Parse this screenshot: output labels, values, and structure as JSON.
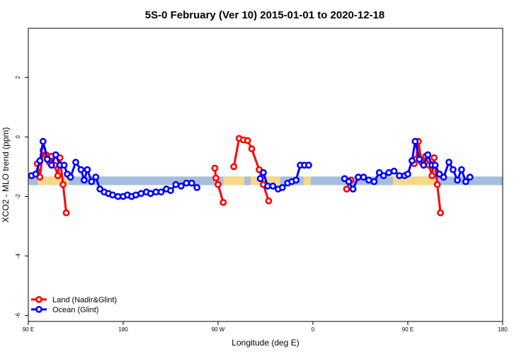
{
  "chart_data": {
    "type": "line",
    "title": "5S-0 February (Ver 10)   2015-01-01 to 2020-12-18",
    "xlabel": "Longitude (deg E)",
    "ylabel": "XCO2 - MLO trend (ppm)",
    "xlim": [
      90,
      540
    ],
    "ylim": [
      -6.2,
      3.65
    ],
    "x_ticks": [
      {
        "value": 90,
        "label": "90 E"
      },
      {
        "value": 180,
        "label": "180"
      },
      {
        "value": 270,
        "label": "90 W"
      },
      {
        "value": 360,
        "label": "0"
      },
      {
        "value": 450,
        "label": "90 E"
      },
      {
        "value": 540,
        "label": "180"
      }
    ],
    "y_ticks": [
      {
        "value": 2,
        "label": "2"
      },
      {
        "value": 0,
        "label": "0"
      },
      {
        "value": -2,
        "label": "-2"
      },
      {
        "value": -4,
        "label": "-4"
      },
      {
        "value": -6,
        "label": "-6"
      }
    ],
    "legend_position": "bottom-left",
    "grid": false,
    "band": {
      "y_from": -1.62,
      "y_to": -1.33,
      "color": "#a6bddb",
      "land_color": "#f5d98b"
    },
    "land_spans": [
      [
        99,
        129
      ],
      [
        275,
        295
      ],
      [
        301,
        329
      ],
      [
        351,
        358
      ],
      [
        436,
        477
      ]
    ],
    "series": [
      {
        "name": "Land (Nadir&Glint)",
        "color": "#ff0000",
        "segments": [
          [
            [
              98.5,
              -0.9
            ],
            [
              101,
              -1.35
            ],
            [
              104,
              -0.45
            ],
            [
              107,
              -0.6
            ],
            [
              110,
              -0.85
            ],
            [
              112,
              -0.65
            ],
            [
              115,
              -0.95
            ],
            [
              118,
              -1.3
            ],
            [
              120,
              -0.7
            ],
            [
              123,
              -1.6
            ],
            [
              126,
              -2.55
            ]
          ],
          [
            [
              267,
              -1.05
            ],
            [
              268,
              -1.38
            ],
            [
              270,
              -1.6
            ],
            [
              275,
              -2.2
            ]
          ],
          [
            [
              285,
              -1.0
            ],
            [
              290,
              -0.05
            ],
            [
              294,
              -0.1
            ],
            [
              298,
              -0.12
            ],
            [
              302,
              -0.4
            ],
            [
              309,
              -1.1
            ],
            [
              313,
              -1.6
            ],
            [
              318,
              -2.15
            ]
          ],
          [
            [
              392,
              -1.75
            ],
            [
              396,
              -1.45
            ]
          ],
          [
            [
              456,
              -0.9
            ],
            [
              458,
              -0.75
            ],
            [
              460,
              -0.15
            ],
            [
              463,
              -0.85
            ],
            [
              467,
              -0.65
            ],
            [
              470,
              -0.95
            ],
            [
              473,
              -1.3
            ],
            [
              475,
              -0.7
            ],
            [
              478,
              -1.6
            ],
            [
              481,
              -2.55
            ]
          ]
        ]
      },
      {
        "name": "Ocean (Glint)",
        "color": "#0000ff",
        "segments": [
          [
            [
              93,
              -1.3
            ],
            [
              97,
              -1.25
            ],
            [
              101,
              -0.8
            ],
            [
              104,
              -0.15
            ],
            [
              108,
              -0.75
            ],
            [
              112,
              -0.95
            ],
            [
              116,
              -0.6
            ],
            [
              120,
              -0.95
            ],
            [
              124,
              -0.95
            ],
            [
              127,
              -1.25
            ],
            [
              130,
              -1.35
            ],
            [
              135,
              -0.85
            ],
            [
              140,
              -1.1
            ],
            [
              143,
              -1.45
            ],
            [
              146,
              -1.1
            ],
            [
              150,
              -1.5
            ],
            [
              154,
              -1.35
            ],
            [
              158,
              -1.75
            ],
            [
              162,
              -1.85
            ],
            [
              166,
              -1.9
            ],
            [
              170,
              -1.95
            ],
            [
              175,
              -2.0
            ],
            [
              180,
              -2.0
            ],
            [
              184,
              -1.95
            ],
            [
              188,
              -2.0
            ],
            [
              192,
              -1.95
            ],
            [
              197,
              -1.9
            ],
            [
              202,
              -1.85
            ],
            [
              206,
              -1.9
            ],
            [
              211,
              -1.85
            ],
            [
              216,
              -1.85
            ],
            [
              221,
              -1.75
            ],
            [
              225,
              -1.8
            ],
            [
              230,
              -1.6
            ],
            [
              235,
              -1.65
            ],
            [
              240,
              -1.55
            ],
            [
              245,
              -1.55
            ],
            [
              250,
              -1.7
            ]
          ],
          [
            [
              310,
              -1.4
            ],
            [
              313,
              -1.2
            ],
            [
              317,
              -1.65
            ],
            [
              322,
              -1.65
            ],
            [
              327,
              -1.75
            ],
            [
              331,
              -1.7
            ],
            [
              336,
              -1.55
            ],
            [
              340,
              -1.5
            ],
            [
              344,
              -1.45
            ],
            [
              348,
              -0.95
            ],
            [
              352,
              -0.95
            ],
            [
              356,
              -0.95
            ]
          ],
          [
            [
              390,
              -1.4
            ],
            [
              394,
              -1.5
            ],
            [
              398,
              -1.75
            ],
            [
              403,
              -1.35
            ],
            [
              408,
              -1.35
            ],
            [
              413,
              -1.45
            ],
            [
              418,
              -1.5
            ],
            [
              423,
              -1.2
            ],
            [
              427,
              -1.3
            ],
            [
              432,
              -1.2
            ],
            [
              437,
              -1.15
            ],
            [
              442,
              -1.3
            ],
            [
              447,
              -1.3
            ],
            [
              450,
              -1.25
            ],
            [
              454,
              -0.8
            ],
            [
              457,
              -0.15
            ],
            [
              461,
              -0.75
            ],
            [
              465,
              -0.95
            ],
            [
              469,
              -0.6
            ],
            [
              473,
              -0.95
            ],
            [
              476,
              -0.95
            ],
            [
              480,
              -1.25
            ],
            [
              484,
              -1.35
            ],
            [
              489,
              -0.85
            ],
            [
              493,
              -1.1
            ],
            [
              497,
              -1.45
            ],
            [
              501,
              -1.1
            ],
            [
              505,
              -1.5
            ],
            [
              509,
              -1.35
            ]
          ]
        ]
      }
    ]
  }
}
